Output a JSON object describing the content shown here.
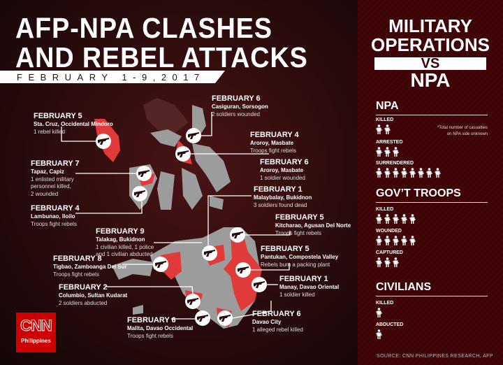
{
  "header": {
    "title_line1": "AFP-NPA CLASHES",
    "title_line2": "AND REBEL ATTACKS",
    "date_range": "FEBRUARY 1-9,2017"
  },
  "colors": {
    "accent_red": "#e03a3a",
    "land_gray": "#9a9a9a",
    "panel": "#3c0306"
  },
  "events": [
    {
      "date": "FEBRUARY 6",
      "place": "Casiguran, Sorsogon",
      "detail": [
        "2 soldiers wounded"
      ]
    },
    {
      "date": "FEBRUARY 5",
      "place": "Sta. Cruz, Occidental Mindoro",
      "detail": [
        "1 rebel killed"
      ]
    },
    {
      "date": "FEBRUARY 4",
      "place": "Aroroy, Masbate",
      "detail": [
        "Troops fight rebels"
      ]
    },
    {
      "date": "FEBRUARY 6",
      "place": "Aroroy, Masbate",
      "detail": [
        "1 soldier wounded"
      ]
    },
    {
      "date": "FEBRUARY 7",
      "place": "Tapaz, Capiz",
      "detail": [
        "1 enlisted military",
        "personnel killed,",
        "2 wounded"
      ]
    },
    {
      "date": "FEBRUARY 1",
      "place": "Malaybalay, Bukidnon",
      "detail": [
        "3 soldiers found dead"
      ]
    },
    {
      "date": "FEBRUARY 4",
      "place": "Lambunao, Iloilo",
      "detail": [
        "Troops fight rebels"
      ]
    },
    {
      "date": "FEBRUARY 5",
      "place": "Kitcharao, Agusan Del Norte",
      "detail": [
        "Troops fight rebels"
      ]
    },
    {
      "date": "FEBRUARY 9",
      "place": "Talakag, Bukidnon",
      "detail": [
        "1 civilian killed, 1 police",
        "and 1 civilian abducted"
      ]
    },
    {
      "date": "FEBRUARY 5",
      "place": "Pantukan, Compostela Valley",
      "detail": [
        "Rebels burn a packing plant"
      ]
    },
    {
      "date": "FEBRUARY 8",
      "place": "Tigbao, Zamboanga Del Sur",
      "detail": [
        "Troops fight rebels"
      ]
    },
    {
      "date": "FEBRUARY 1",
      "place": "Manay, Davao Oriental",
      "detail": [
        "1 soldier killed"
      ]
    },
    {
      "date": "FEBRUARY 2",
      "place": "Columbio, Sultan Kudarat",
      "detail": [
        "2 soldiers abducted"
      ]
    },
    {
      "date": "FEBRUARY 6",
      "place": "Davao City",
      "detail": [
        "1 alleged rebel killed"
      ]
    },
    {
      "date": "FEBRUARY 6",
      "place": "Malita, Davao Occidental",
      "detail": [
        "Troops fight rebels"
      ]
    }
  ],
  "marker_icon": "rifle-icon",
  "logo": {
    "brand": "CNN",
    "sub": "Philippines"
  },
  "panel": {
    "title_line1": "MILITARY",
    "title_line2": "OPERATIONS",
    "vs": "VS",
    "title_line3": "NPA",
    "note": [
      "*Total number of casualties",
      "on NPA side unknown"
    ],
    "sections": [
      {
        "title": "NPA",
        "stats": [
          {
            "label": "KILLED",
            "count": 2
          },
          {
            "label": "ARRESTED",
            "count": 3
          },
          {
            "label": "SURRENDERED",
            "count": 8
          }
        ]
      },
      {
        "title": "GOV’T TROOPS",
        "stats": [
          {
            "label": "KILLED",
            "count": 5
          },
          {
            "label": "WOUNDED",
            "count": 5
          },
          {
            "label": "CAPTURED",
            "count": 3
          }
        ]
      },
      {
        "title": "CIVILIANS",
        "stats": [
          {
            "label": "KILLED",
            "count": 1
          },
          {
            "label": "ABDUCTED",
            "count": 1
          }
        ]
      }
    ],
    "person_icon": "person-icon",
    "source": "SOURCE: CNN PHILIPPINES RESEARCH, AFP"
  }
}
